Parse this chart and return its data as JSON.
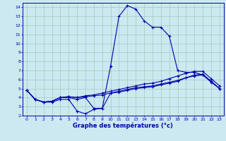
{
  "title": "Graphe des températures (°c)",
  "bg_color": "#cce8f0",
  "grid_color": "#a0ccbb",
  "line_color": "#0000aa",
  "xlim": [
    -0.5,
    23.5
  ],
  "ylim": [
    2,
    14.5
  ],
  "xticks": [
    0,
    1,
    2,
    3,
    4,
    5,
    6,
    7,
    8,
    9,
    10,
    11,
    12,
    13,
    14,
    15,
    16,
    17,
    18,
    19,
    20,
    21,
    22,
    23
  ],
  "yticks": [
    2,
    3,
    4,
    5,
    6,
    7,
    8,
    9,
    10,
    11,
    12,
    13,
    14
  ],
  "line1_x": [
    0,
    1,
    2,
    3,
    4,
    5,
    6,
    7,
    8,
    9,
    10,
    11,
    12,
    13,
    14,
    15,
    16,
    17,
    18,
    19,
    20,
    21,
    22,
    23
  ],
  "line1_y": [
    4.8,
    3.8,
    3.5,
    3.6,
    4.0,
    4.0,
    3.8,
    4.0,
    2.8,
    2.8,
    7.5,
    13.0,
    14.2,
    13.8,
    12.5,
    11.8,
    11.8,
    10.8,
    7.0,
    6.8,
    6.8,
    6.5,
    5.8,
    5.0
  ],
  "line2_x": [
    0,
    1,
    2,
    3,
    4,
    5,
    6,
    7,
    8,
    9,
    10,
    11,
    12,
    13,
    14,
    15,
    16,
    17,
    18,
    19,
    20,
    21,
    22,
    23
  ],
  "line2_y": [
    4.8,
    3.8,
    3.5,
    3.6,
    4.0,
    4.1,
    4.0,
    4.1,
    4.2,
    4.3,
    4.5,
    4.6,
    4.8,
    5.0,
    5.1,
    5.2,
    5.4,
    5.6,
    5.8,
    6.2,
    6.5,
    6.6,
    5.8,
    5.0
  ],
  "line3_x": [
    0,
    1,
    2,
    3,
    4,
    5,
    6,
    7,
    8,
    9,
    10,
    11,
    12,
    13,
    14,
    15,
    16,
    17,
    18,
    19,
    20,
    21,
    22,
    23
  ],
  "line3_y": [
    4.8,
    3.8,
    3.5,
    3.6,
    4.0,
    4.1,
    4.0,
    4.2,
    4.3,
    4.5,
    4.7,
    4.9,
    5.1,
    5.3,
    5.5,
    5.6,
    5.8,
    6.1,
    6.4,
    6.7,
    6.9,
    6.9,
    6.1,
    5.3
  ],
  "line4_x": [
    0,
    1,
    2,
    3,
    4,
    5,
    6,
    7,
    8,
    9,
    10,
    11,
    12,
    13,
    14,
    15,
    16,
    17,
    18,
    19,
    20,
    21,
    22,
    23
  ],
  "line4_y": [
    4.8,
    3.8,
    3.5,
    3.5,
    3.8,
    3.8,
    2.5,
    2.2,
    2.7,
    2.8,
    4.5,
    4.7,
    4.9,
    5.1,
    5.2,
    5.3,
    5.5,
    5.7,
    5.9,
    6.2,
    6.4,
    6.5,
    5.7,
    5.0
  ]
}
